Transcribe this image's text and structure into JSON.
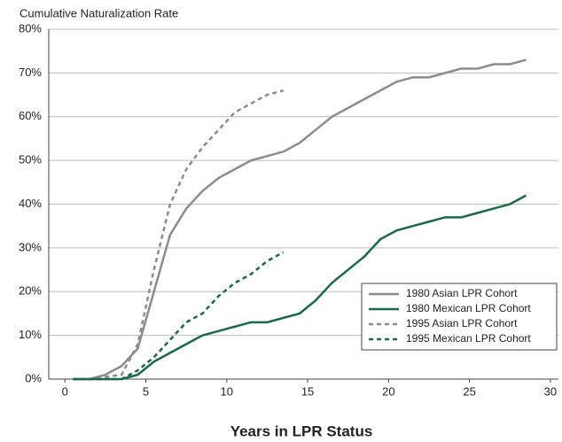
{
  "chart_data": {
    "type": "line",
    "title": "Cumulative Naturalization Rate",
    "x_label": "Years in LPR Status",
    "xlim": [
      -1,
      30.5
    ],
    "xticks": [
      0,
      5,
      10,
      15,
      20,
      25,
      30
    ],
    "ylim": [
      0,
      80
    ],
    "yticks": [
      {
        "value": 0,
        "label": "0%"
      },
      {
        "value": 10,
        "label": "10%"
      },
      {
        "value": 20,
        "label": "20%"
      },
      {
        "value": 30,
        "label": "30%"
      },
      {
        "value": 40,
        "label": "40%"
      },
      {
        "value": 50,
        "label": "50%"
      },
      {
        "value": 60,
        "label": "60%"
      },
      {
        "value": 70,
        "label": "70%"
      },
      {
        "value": 80,
        "label": "80%"
      }
    ],
    "grid": true,
    "legend": "lower right",
    "series": [
      {
        "name": "1980 Asian LPR Cohort",
        "color": "#8c8c8c",
        "style": "solid",
        "x": [
          0.5,
          1.5,
          2.5,
          3.5,
          4.5,
          5.5,
          6.5,
          7.5,
          8.5,
          9.5,
          10.5,
          11.5,
          12.5,
          13.5,
          14.5,
          15.5,
          16.5,
          17.5,
          18.5,
          19.5,
          20.5,
          21.5,
          22.5,
          23.5,
          24.5,
          25.5,
          26.5,
          27.5,
          28.5
        ],
        "values": [
          0,
          0,
          1,
          3,
          7,
          20,
          33,
          39,
          43,
          46,
          48,
          50,
          51,
          52,
          54,
          57,
          60,
          62,
          64,
          66,
          68,
          69,
          69,
          70,
          71,
          71,
          72,
          72,
          73
        ]
      },
      {
        "name": "1980 Mexican LPR Cohort",
        "color": "#1a6b45",
        "style": "solid",
        "x": [
          0.5,
          1.5,
          2.5,
          3.5,
          4.5,
          5.5,
          6.5,
          7.5,
          8.5,
          9.5,
          10.5,
          11.5,
          12.5,
          13.5,
          14.5,
          15.5,
          16.5,
          17.5,
          18.5,
          19.5,
          20.5,
          21.5,
          22.5,
          23.5,
          24.5,
          25.5,
          26.5,
          27.5,
          28.5
        ],
        "values": [
          0,
          0,
          0,
          0,
          1,
          4,
          6,
          8,
          10,
          11,
          12,
          13,
          13,
          14,
          15,
          18,
          22,
          25,
          28,
          32,
          34,
          35,
          36,
          37,
          37,
          38,
          39,
          40,
          42
        ]
      },
      {
        "name": "1995 Asian LPR Cohort",
        "color": "#8c8c8c",
        "style": "dashed",
        "x": [
          0.5,
          1.5,
          2.5,
          3.5,
          4.5,
          5.5,
          6.5,
          7.5,
          8.5,
          9.5,
          10.5,
          11.5,
          12.5,
          13.5
        ],
        "values": [
          0,
          0,
          0.5,
          1,
          8,
          25,
          40,
          48,
          53,
          57,
          61,
          63,
          65,
          66
        ]
      },
      {
        "name": "1995 Mexican LPR Cohort",
        "color": "#1a6b45",
        "style": "dashed",
        "x": [
          0.5,
          1.5,
          2.5,
          3.5,
          4.5,
          5.5,
          6.5,
          7.5,
          8.5,
          9.5,
          10.5,
          11.5,
          12.5,
          13.5
        ],
        "values": [
          0,
          0,
          0,
          0,
          2,
          5,
          9,
          13,
          15,
          19,
          22,
          24,
          27,
          29
        ]
      }
    ]
  }
}
